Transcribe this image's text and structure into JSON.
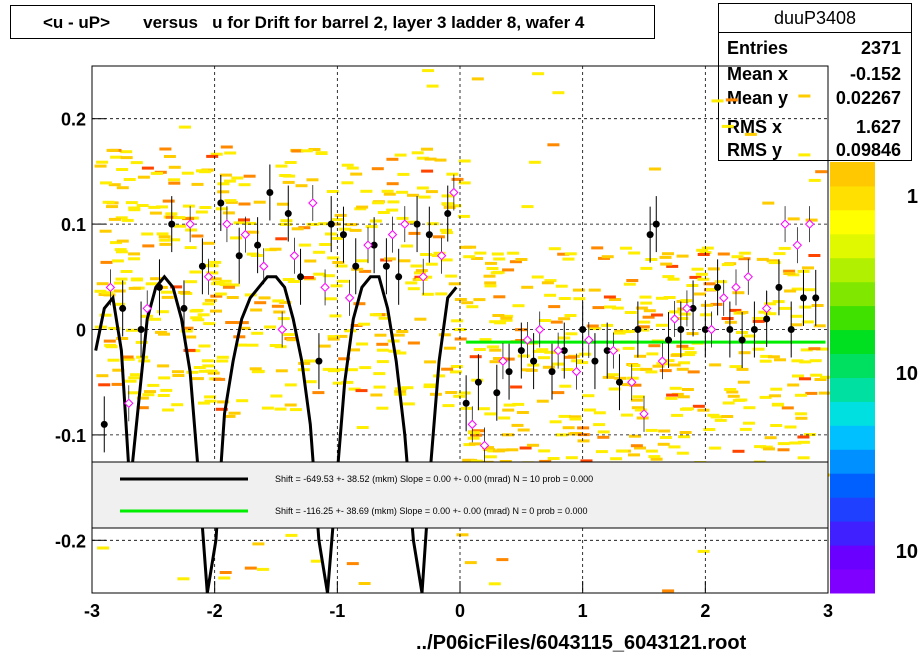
{
  "title": "<u - uP>       versus   u for Drift for barrel 2, layer 3 ladder 8, wafer 4",
  "stats": {
    "name": "duuP3408",
    "rows": [
      {
        "label": "Entries",
        "value": "2371"
      },
      {
        "label": "Mean x",
        "value": "-0.152"
      },
      {
        "label": "Mean y",
        "value": "0.02267"
      },
      {
        "label": "RMS x",
        "value": "1.627"
      },
      {
        "label": "RMS y",
        "value": "0.09846"
      }
    ]
  },
  "footer": "../P06icFiles/6043115_6043121.root",
  "legend": {
    "entries": [
      {
        "text": "Shift =  -649.53 +- 38.52 (mkm) Slope =     0.00 +- 0.00 (mrad)  N = 10 prob = 0.000",
        "color": "#000000"
      },
      {
        "text": "Shift =  -116.25 +- 38.69 (mkm) Slope =     0.00 +- 0.00 (mrad)  N = 0 prob = 0.000",
        "color": "#00ee00"
      }
    ]
  },
  "palette": {
    "colz_cells": [
      "#ffee00",
      "#ffcc00",
      "#ff8800",
      "#ff4400"
    ],
    "profile_points": "#000000",
    "open_markers": "#ff00ff",
    "black_fit": "#000000",
    "green_fit": "#00ee00"
  },
  "chart_data": {
    "type": "scatter",
    "title": "<u - uP>       versus   u for Drift for barrel 2, layer 3 ladder 8, wafer 4",
    "xlabel": "",
    "ylabel": "",
    "xlim": [
      -3,
      3
    ],
    "ylim": [
      -0.25,
      0.25
    ],
    "x_ticks": [
      "-3",
      "-2",
      "-1",
      "0",
      "1",
      "2",
      "3"
    ],
    "y_ticks": [
      "-0.2",
      "-0.1",
      "0",
      "0.1",
      "0.2"
    ],
    "grid": true,
    "colorbar": {
      "labels": [
        "1",
        "10",
        "10"
      ],
      "scale": "log"
    },
    "series": [
      {
        "kind": "profile",
        "x": [
          -2.9,
          -2.75,
          -2.6,
          -2.45,
          -2.35,
          -2.25,
          -2.1,
          -1.95,
          -1.8,
          -1.65,
          -1.55,
          -1.4,
          -1.3,
          -1.15,
          -1.05,
          -0.95,
          -0.85,
          -0.7,
          -0.6,
          -0.5,
          -0.35,
          -0.25,
          -0.1,
          0.05,
          0.15,
          0.3,
          0.4,
          0.5,
          0.6,
          0.75,
          0.85,
          1.0,
          1.1,
          1.2,
          1.3,
          1.45,
          1.55,
          1.6,
          1.7,
          1.8,
          1.9,
          2.0,
          2.1,
          2.2,
          2.3,
          2.4,
          2.5,
          2.6,
          2.7,
          2.8,
          2.9
        ],
        "y": [
          -0.09,
          0.02,
          0.0,
          0.04,
          0.1,
          0.02,
          0.06,
          0.12,
          0.07,
          0.08,
          0.13,
          0.11,
          0.05,
          -0.03,
          0.1,
          0.09,
          0.06,
          0.08,
          0.06,
          0.05,
          0.1,
          0.09,
          0.11,
          -0.07,
          -0.05,
          -0.06,
          -0.04,
          -0.02,
          -0.03,
          -0.04,
          -0.02,
          0.0,
          -0.03,
          -0.02,
          -0.05,
          0.0,
          0.09,
          0.1,
          -0.01,
          0.0,
          0.02,
          0.0,
          0.04,
          0.0,
          -0.01,
          0.0,
          0.01,
          0.04,
          0.0,
          0.03,
          0.03
        ],
        "color": "#000000"
      },
      {
        "kind": "open-markers",
        "x": [
          -2.85,
          -2.7,
          -2.55,
          -2.2,
          -2.05,
          -1.9,
          -1.75,
          -1.6,
          -1.45,
          -1.35,
          -1.2,
          -1.1,
          -0.9,
          -0.75,
          -0.55,
          -0.45,
          -0.3,
          -0.15,
          -0.05,
          0.1,
          0.2,
          0.35,
          0.55,
          0.65,
          0.8,
          0.95,
          1.05,
          1.25,
          1.4,
          1.5,
          1.65,
          1.75,
          1.85,
          2.05,
          2.15,
          2.25,
          2.35,
          2.5,
          2.65,
          2.75,
          2.85
        ],
        "y": [
          0.04,
          -0.07,
          0.02,
          0.1,
          0.05,
          0.1,
          0.09,
          0.06,
          0.0,
          0.07,
          0.12,
          0.04,
          0.03,
          0.08,
          0.09,
          0.1,
          0.05,
          0.07,
          0.13,
          -0.09,
          -0.11,
          -0.03,
          -0.01,
          0.0,
          -0.02,
          -0.04,
          -0.01,
          -0.02,
          -0.05,
          -0.08,
          -0.03,
          0.01,
          0.02,
          0.0,
          0.03,
          0.04,
          0.05,
          0.02,
          0.1,
          0.08,
          0.1
        ],
        "color": "#ff00ff"
      },
      {
        "kind": "fit-curve",
        "name": "",
        "x": [
          -2.97,
          -2.9,
          -2.83,
          -2.76,
          -2.69,
          -2.62,
          -2.55,
          -2.48,
          -2.41,
          -2.34,
          -2.27,
          -2.2,
          -2.13,
          -2.06,
          -1.99,
          -1.92,
          -1.85,
          -1.78,
          -1.71,
          -1.64,
          -1.57,
          -1.5,
          -1.43,
          -1.36,
          -1.29,
          -1.22,
          -1.15,
          -1.08,
          -1.01,
          -0.94,
          -0.87,
          -0.8,
          -0.73,
          -0.66,
          -0.59,
          -0.52,
          -0.45,
          -0.38,
          -0.31,
          -0.24,
          -0.17,
          -0.1,
          -0.03
        ],
        "y": [
          -0.02,
          0.02,
          0.03,
          -0.02,
          -0.15,
          -0.07,
          0.01,
          0.04,
          0.05,
          0.04,
          0.01,
          -0.04,
          -0.14,
          -0.25,
          -0.2,
          -0.08,
          -0.03,
          0.01,
          0.03,
          0.04,
          0.05,
          0.05,
          0.04,
          0.01,
          -0.03,
          -0.09,
          -0.2,
          -0.25,
          -0.15,
          -0.05,
          0.01,
          0.04,
          0.05,
          0.05,
          0.02,
          -0.03,
          -0.1,
          -0.2,
          -0.25,
          -0.13,
          -0.03,
          0.03,
          0.04
        ],
        "color": "#000000"
      },
      {
        "kind": "fit-line",
        "x": [
          0.05,
          2.98
        ],
        "y": [
          -0.012,
          -0.012
        ],
        "color": "#00ee00"
      }
    ]
  }
}
